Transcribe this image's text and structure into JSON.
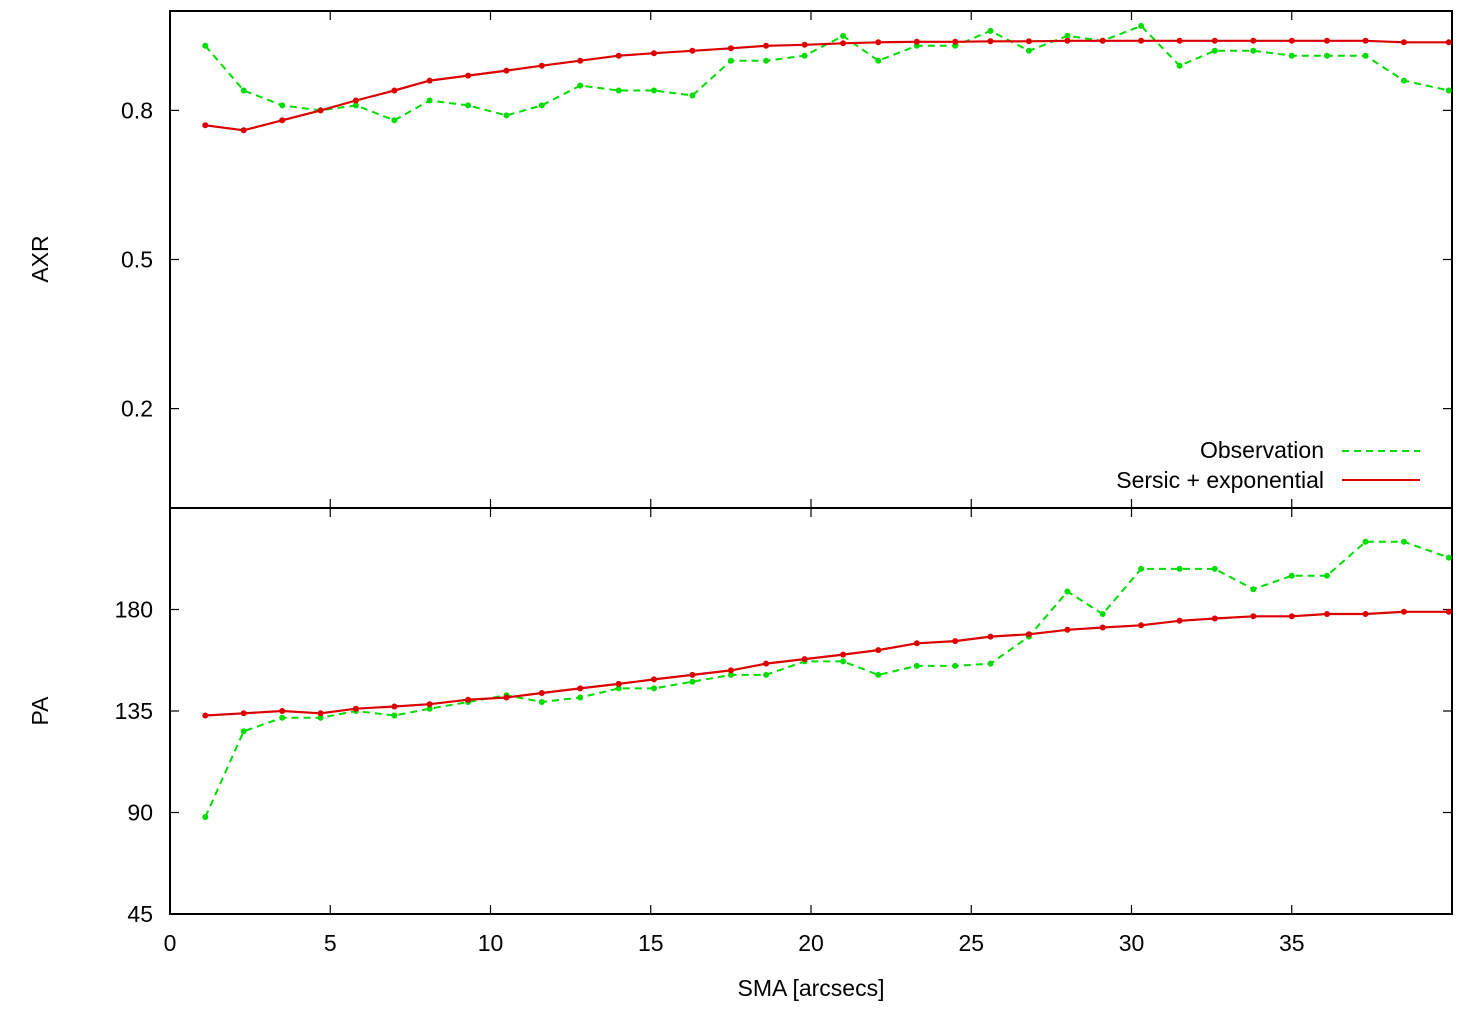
{
  "figure": {
    "xlabel": "SMA [arcsecs]",
    "x_ticks": [
      "0",
      "5",
      "10",
      "15",
      "20",
      "25",
      "30",
      "35"
    ],
    "legend": {
      "observation": "Observation",
      "model": "Sersic + exponential"
    }
  },
  "colors": {
    "observation": "#00dd00",
    "model": "#dd0000",
    "axes": "#000000"
  },
  "chart_data": [
    {
      "type": "line",
      "ylabel": "AXR",
      "y_ticks": [
        "0.2",
        "0.5",
        "0.8"
      ],
      "xlim": [
        0,
        40
      ],
      "ylim": [
        0.0,
        1.0
      ],
      "y_tick_values": [
        0.2,
        0.5,
        0.8
      ],
      "legend_position": "bottom-right",
      "grid": false,
      "series": [
        {
          "name": "Observation",
          "style": "dashed",
          "x": [
            1.1,
            2.3,
            3.5,
            4.7,
            5.8,
            7.0,
            8.1,
            9.3,
            10.5,
            11.6,
            12.8,
            14.0,
            15.1,
            16.3,
            17.5,
            18.6,
            19.8,
            21.0,
            22.1,
            23.3,
            24.5,
            25.6,
            26.8,
            28.0,
            29.1,
            30.3,
            31.5,
            32.6,
            33.8,
            35.0,
            36.1,
            37.3,
            38.5,
            39.9
          ],
          "y": [
            0.93,
            0.84,
            0.81,
            0.8,
            0.81,
            0.78,
            0.82,
            0.81,
            0.79,
            0.81,
            0.85,
            0.84,
            0.84,
            0.83,
            0.9,
            0.9,
            0.91,
            0.95,
            0.9,
            0.93,
            0.93,
            0.96,
            0.92,
            0.95,
            0.94,
            0.97,
            0.89,
            0.92,
            0.92,
            0.91,
            0.91,
            0.91,
            0.86,
            0.84
          ]
        },
        {
          "name": "Sersic + exponential",
          "style": "solid",
          "x": [
            1.1,
            2.3,
            3.5,
            4.7,
            5.8,
            7.0,
            8.1,
            9.3,
            10.5,
            11.6,
            12.8,
            14.0,
            15.1,
            16.3,
            17.5,
            18.6,
            19.8,
            21.0,
            22.1,
            23.3,
            24.5,
            25.6,
            26.8,
            28.0,
            29.1,
            30.3,
            31.5,
            32.6,
            33.8,
            35.0,
            36.1,
            37.3,
            38.5,
            39.9
          ],
          "y": [
            0.77,
            0.76,
            0.78,
            0.8,
            0.82,
            0.84,
            0.86,
            0.87,
            0.88,
            0.89,
            0.9,
            0.91,
            0.915,
            0.92,
            0.925,
            0.93,
            0.932,
            0.935,
            0.937,
            0.938,
            0.938,
            0.939,
            0.939,
            0.94,
            0.94,
            0.94,
            0.94,
            0.94,
            0.94,
            0.94,
            0.94,
            0.94,
            0.937,
            0.937
          ]
        }
      ]
    },
    {
      "type": "line",
      "ylabel": "PA",
      "y_ticks": [
        "45",
        "90",
        "135",
        "180"
      ],
      "xlim": [
        0,
        40
      ],
      "ylim": [
        45,
        225
      ],
      "y_tick_values": [
        45,
        90,
        135,
        180
      ],
      "grid": false,
      "series": [
        {
          "name": "Observation",
          "style": "dashed",
          "x": [
            1.1,
            2.3,
            3.5,
            4.7,
            5.8,
            7.0,
            8.1,
            9.3,
            10.5,
            11.6,
            12.8,
            14.0,
            15.1,
            16.3,
            17.5,
            18.6,
            19.8,
            21.0,
            22.1,
            23.3,
            24.5,
            25.6,
            26.8,
            28.0,
            29.1,
            30.3,
            31.5,
            32.6,
            33.8,
            35.0,
            36.1,
            37.3,
            38.5,
            39.9
          ],
          "y": [
            88,
            126,
            132,
            132,
            135,
            133,
            136,
            139,
            142,
            139,
            141,
            145,
            145,
            148,
            151,
            151,
            157,
            157,
            151,
            155,
            155,
            156,
            168,
            188,
            178,
            198,
            198,
            198,
            189,
            195,
            195,
            210,
            210,
            203
          ]
        },
        {
          "name": "Sersic + exponential",
          "style": "solid",
          "x": [
            1.1,
            2.3,
            3.5,
            4.7,
            5.8,
            7.0,
            8.1,
            9.3,
            10.5,
            11.6,
            12.8,
            14.0,
            15.1,
            16.3,
            17.5,
            18.6,
            19.8,
            21.0,
            22.1,
            23.3,
            24.5,
            25.6,
            26.8,
            28.0,
            29.1,
            30.3,
            31.5,
            32.6,
            33.8,
            35.0,
            36.1,
            37.3,
            38.5,
            39.9
          ],
          "y": [
            133,
            134,
            135,
            134,
            136,
            137,
            138,
            140,
            141,
            143,
            145,
            147,
            149,
            151,
            153,
            156,
            158,
            160,
            162,
            165,
            166,
            168,
            169,
            171,
            172,
            173,
            175,
            176,
            177,
            177,
            178,
            178,
            179,
            179
          ]
        }
      ]
    }
  ]
}
